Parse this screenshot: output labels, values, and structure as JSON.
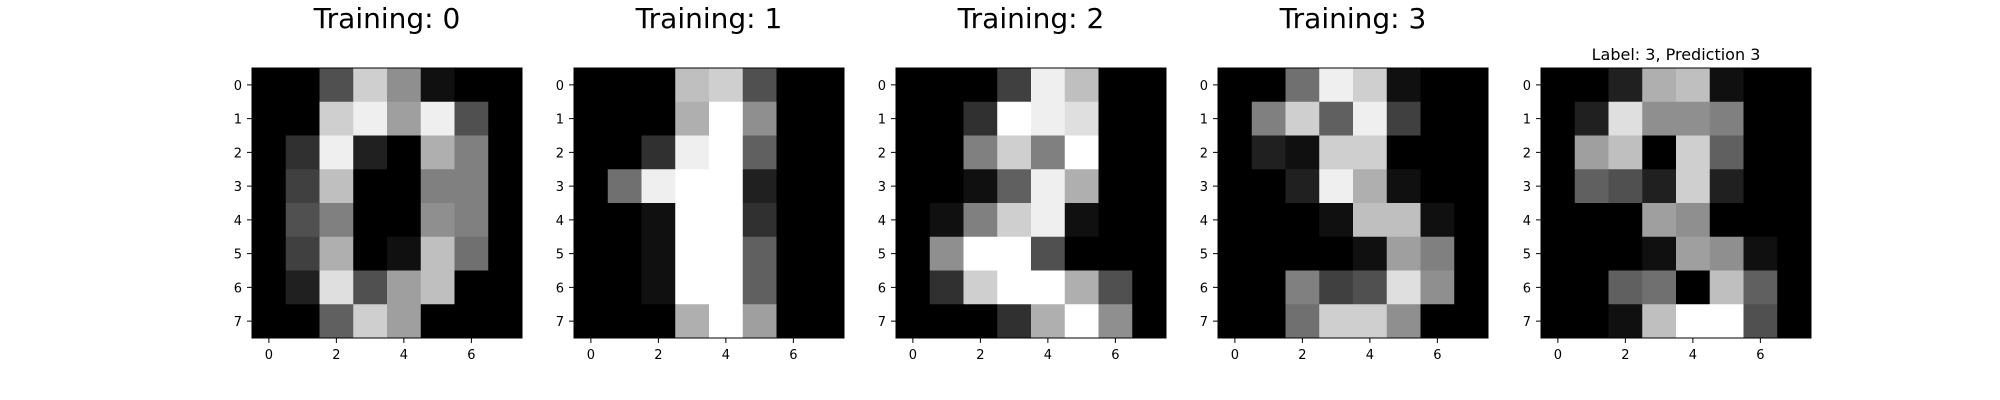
{
  "chart_data": [
    {
      "type": "heatmap",
      "title": "Training: 0",
      "colormap": "gray",
      "value_range": [
        0,
        16
      ],
      "xticks": [
        0,
        2,
        4,
        6
      ],
      "yticks": [
        0,
        1,
        2,
        3,
        4,
        5,
        6,
        7
      ],
      "values": [
        [
          0,
          0,
          5,
          13,
          9,
          1,
          0,
          0
        ],
        [
          0,
          0,
          13,
          15,
          10,
          15,
          5,
          0
        ],
        [
          0,
          3,
          15,
          2,
          0,
          11,
          8,
          0
        ],
        [
          0,
          4,
          12,
          0,
          0,
          8,
          8,
          0
        ],
        [
          0,
          5,
          8,
          0,
          0,
          9,
          8,
          0
        ],
        [
          0,
          4,
          11,
          0,
          1,
          12,
          7,
          0
        ],
        [
          0,
          2,
          14,
          5,
          10,
          12,
          0,
          0
        ],
        [
          0,
          0,
          6,
          13,
          10,
          0,
          0,
          0
        ]
      ]
    },
    {
      "type": "heatmap",
      "title": "Training: 1",
      "colormap": "gray",
      "value_range": [
        0,
        16
      ],
      "xticks": [
        0,
        2,
        4,
        6
      ],
      "yticks": [
        0,
        1,
        2,
        3,
        4,
        5,
        6,
        7
      ],
      "values": [
        [
          0,
          0,
          0,
          12,
          13,
          5,
          0,
          0
        ],
        [
          0,
          0,
          0,
          11,
          16,
          9,
          0,
          0
        ],
        [
          0,
          0,
          3,
          15,
          16,
          6,
          0,
          0
        ],
        [
          0,
          7,
          15,
          16,
          16,
          2,
          0,
          0
        ],
        [
          0,
          0,
          1,
          16,
          16,
          3,
          0,
          0
        ],
        [
          0,
          0,
          1,
          16,
          16,
          6,
          0,
          0
        ],
        [
          0,
          0,
          1,
          16,
          16,
          6,
          0,
          0
        ],
        [
          0,
          0,
          0,
          11,
          16,
          10,
          0,
          0
        ]
      ]
    },
    {
      "type": "heatmap",
      "title": "Training: 2",
      "colormap": "gray",
      "value_range": [
        0,
        16
      ],
      "xticks": [
        0,
        2,
        4,
        6
      ],
      "yticks": [
        0,
        1,
        2,
        3,
        4,
        5,
        6,
        7
      ],
      "values": [
        [
          0,
          0,
          0,
          4,
          15,
          12,
          0,
          0
        ],
        [
          0,
          0,
          3,
          16,
          15,
          14,
          0,
          0
        ],
        [
          0,
          0,
          8,
          13,
          8,
          16,
          0,
          0
        ],
        [
          0,
          0,
          1,
          6,
          15,
          11,
          0,
          0
        ],
        [
          0,
          1,
          8,
          13,
          15,
          1,
          0,
          0
        ],
        [
          0,
          9,
          16,
          16,
          5,
          0,
          0,
          0
        ],
        [
          0,
          3,
          13,
          16,
          16,
          11,
          5,
          0
        ],
        [
          0,
          0,
          0,
          3,
          11,
          16,
          9,
          0
        ]
      ]
    },
    {
      "type": "heatmap",
      "title": "Training: 3",
      "colormap": "gray",
      "value_range": [
        0,
        16
      ],
      "xticks": [
        0,
        2,
        4,
        6
      ],
      "yticks": [
        0,
        1,
        2,
        3,
        4,
        5,
        6,
        7
      ],
      "values": [
        [
          0,
          0,
          7,
          15,
          13,
          1,
          0,
          0
        ],
        [
          0,
          8,
          13,
          6,
          15,
          4,
          0,
          0
        ],
        [
          0,
          2,
          1,
          13,
          13,
          0,
          0,
          0
        ],
        [
          0,
          0,
          2,
          15,
          11,
          1,
          0,
          0
        ],
        [
          0,
          0,
          0,
          1,
          12,
          12,
          1,
          0
        ],
        [
          0,
          0,
          0,
          0,
          1,
          10,
          8,
          0
        ],
        [
          0,
          0,
          8,
          4,
          5,
          14,
          9,
          0
        ],
        [
          0,
          0,
          7,
          13,
          13,
          9,
          0,
          0
        ]
      ]
    },
    {
      "type": "heatmap",
      "title": "Label: 3, Prediction 3",
      "colormap": "gray",
      "value_range": [
        0,
        16
      ],
      "xticks": [
        0,
        2,
        4,
        6
      ],
      "yticks": [
        0,
        1,
        2,
        3,
        4,
        5,
        6,
        7
      ],
      "values": [
        [
          0,
          0,
          2,
          11,
          12,
          1,
          0,
          0
        ],
        [
          0,
          2,
          14,
          9,
          9,
          8,
          0,
          0
        ],
        [
          0,
          10,
          12,
          0,
          13,
          6,
          0,
          0
        ],
        [
          0,
          6,
          5,
          2,
          13,
          2,
          0,
          0
        ],
        [
          0,
          0,
          0,
          10,
          9,
          0,
          0,
          0
        ],
        [
          0,
          0,
          0,
          1,
          10,
          9,
          1,
          0
        ],
        [
          0,
          0,
          6,
          7,
          0,
          12,
          6,
          0
        ],
        [
          0,
          0,
          1,
          12,
          16,
          16,
          5,
          0
        ]
      ]
    }
  ]
}
